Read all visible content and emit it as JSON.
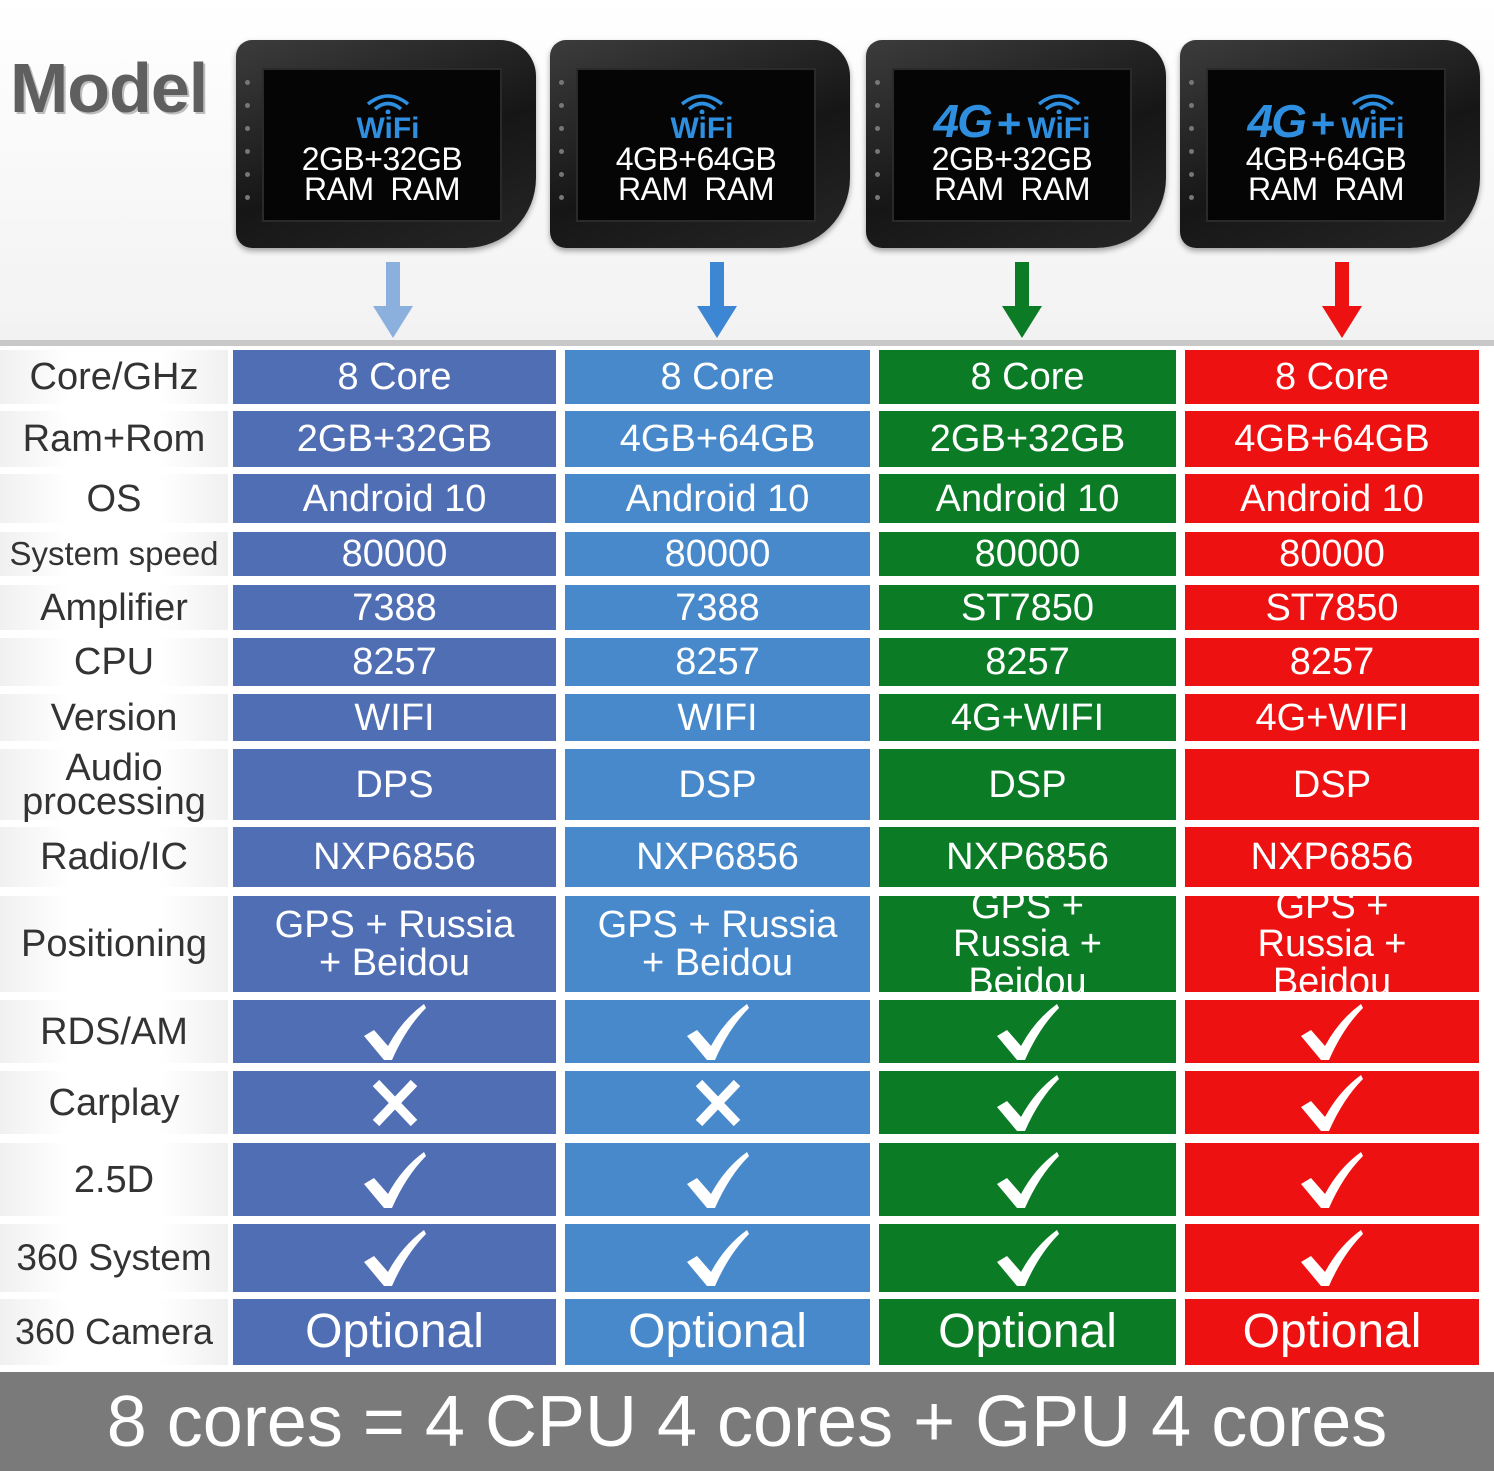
{
  "header": {
    "model_label": "Model",
    "colors": [
      "#4f6eb4",
      "#4889cc",
      "#0b7b26",
      "#ee1111"
    ],
    "arrow_colors": [
      "#8cb0de",
      "#3d86d4",
      "#0b7b26",
      "#ee1111"
    ],
    "models": [
      {
        "net_4g": "",
        "net_plus": "",
        "wifi": "WiFi",
        "storage": "2GB+32GB",
        "ram_labels": "RAM  RAM"
      },
      {
        "net_4g": "",
        "net_plus": "",
        "wifi": "WiFi",
        "storage": "4GB+64GB",
        "ram_labels": "RAM  RAM"
      },
      {
        "net_4g": "4G",
        "net_plus": "+",
        "wifi": "WiFi",
        "storage": "2GB+32GB",
        "ram_labels": "RAM  RAM"
      },
      {
        "net_4g": "4G",
        "net_plus": "+",
        "wifi": "WiFi",
        "storage": "4GB+64GB",
        "ram_labels": "RAM  RAM"
      }
    ]
  },
  "table": {
    "rows": [
      {
        "label": "Core/GHz",
        "cells": [
          "8 Core",
          "8 Core",
          "8 Core",
          "8 Core"
        ]
      },
      {
        "label": "Ram+Rom",
        "cells": [
          "2GB+32GB",
          "4GB+64GB",
          "2GB+32GB",
          "4GB+64GB"
        ]
      },
      {
        "label": "OS",
        "cells": [
          "Android 10",
          "Android 10",
          "Android 10",
          "Android 10"
        ]
      },
      {
        "label": "System speed",
        "cells": [
          "80000",
          "80000",
          "80000",
          "80000"
        ]
      },
      {
        "label": "Amplifier",
        "cells": [
          "7388",
          "7388",
          "ST7850",
          "ST7850"
        ]
      },
      {
        "label": "CPU",
        "cells": [
          "8257",
          "8257",
          "8257",
          "8257"
        ]
      },
      {
        "label": "Version",
        "cells": [
          "WIFI",
          "WIFI",
          "4G+WIFI",
          "4G+WIFI"
        ]
      },
      {
        "label": "Audio processing",
        "cells": [
          "DPS",
          "DSP",
          "DSP",
          "DSP"
        ]
      },
      {
        "label": "Radio/IC",
        "cells": [
          "NXP6856",
          "NXP6856",
          "NXP6856",
          "NXP6856"
        ]
      },
      {
        "label": "Positioning",
        "cells": [
          "GPS + Russia + Beidou",
          "GPS + Russia + Beidou",
          "GPS + Russia + Beidou",
          "GPS + Russia + Beidou"
        ]
      },
      {
        "label": "RDS/AM",
        "marks": [
          "check-icon",
          "check-icon",
          "check-icon",
          "check-icon"
        ]
      },
      {
        "label": "Carplay",
        "marks": [
          "cross-icon",
          "cross-icon",
          "check-icon",
          "check-icon"
        ]
      },
      {
        "label": "2.5D",
        "marks": [
          "check-icon",
          "check-icon",
          "check-icon",
          "check-icon"
        ]
      },
      {
        "label": "360 System",
        "marks": [
          "check-icon",
          "check-icon",
          "check-icon",
          "check-icon"
        ]
      },
      {
        "label": "360 Camera",
        "cells": [
          "Optional",
          "Optional",
          "Optional",
          "Optional"
        ]
      }
    ]
  },
  "footer": {
    "text": "8 cores = 4 CPU 4 cores + GPU 4 cores"
  }
}
